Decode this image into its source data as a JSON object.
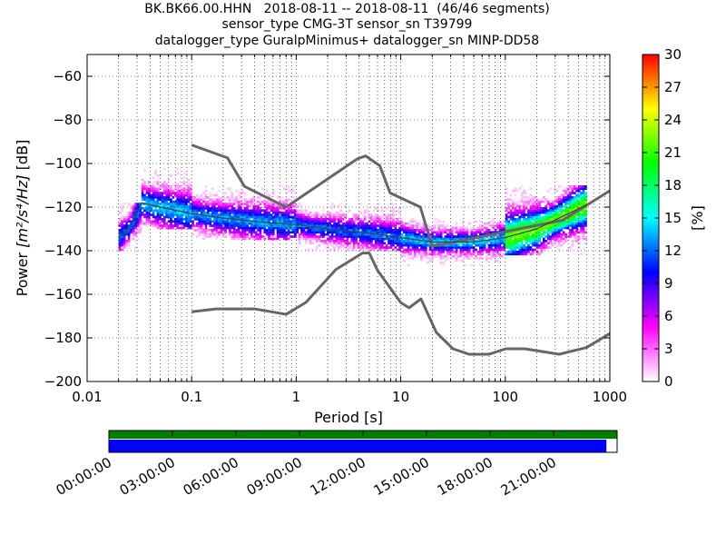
{
  "chart_data": {
    "type": "heatmap",
    "title_lines": [
      "BK.BK66.00.HHN   2018-08-11 -- 2018-08-11  (46/46 segments)",
      "sensor_type CMG-3T sensor_sn T39799",
      "datalogger_type GuralpMinimus+ datalogger_sn MINP-DD58"
    ],
    "xlabel": "Period [s]",
    "ylabel_prefix": "Power ",
    "ylabel_math": "[m²/s⁴/Hz]",
    "ylabel_suffix": " [dB]",
    "x_scale": "log",
    "xlim": [
      0.01,
      1000
    ],
    "ylim": [
      -200,
      -50
    ],
    "x_ticks": [
      0.01,
      0.1,
      1,
      10,
      100,
      1000
    ],
    "x_tick_labels": [
      "0.01",
      "0.1",
      "1",
      "10",
      "100",
      "1000"
    ],
    "y_ticks": [
      -200,
      -180,
      -160,
      -140,
      -120,
      -100,
      -80,
      -60
    ],
    "y_tick_labels": [
      "−200",
      "−180",
      "−160",
      "−140",
      "−120",
      "−100",
      "−80",
      "−60"
    ],
    "grid": true,
    "colorbar": {
      "label": "[%]",
      "range": [
        0,
        30
      ],
      "ticks": [
        0,
        3,
        6,
        9,
        12,
        15,
        18,
        21,
        24,
        27,
        30
      ],
      "colormap": [
        "#ffffff",
        "#ff00ff",
        "#0000ff",
        "#00ffff",
        "#00ff00",
        "#ffff00",
        "#ff0000"
      ]
    },
    "reference_curves": {
      "color": "#666666",
      "high_noise_model": [
        [
          0.1,
          -91.5
        ],
        [
          0.22,
          -97.4
        ],
        [
          0.32,
          -110.5
        ],
        [
          0.8,
          -120
        ],
        [
          3.8,
          -98
        ],
        [
          4.6,
          -96.5
        ],
        [
          6.3,
          -101
        ],
        [
          7.9,
          -113.5
        ],
        [
          15.4,
          -120
        ],
        [
          20,
          -138
        ],
        [
          354.8,
          -126
        ],
        [
          1000,
          -112.5
        ]
      ],
      "low_noise_model": [
        [
          0.1,
          -168
        ],
        [
          0.17,
          -166.7
        ],
        [
          0.4,
          -166.7
        ],
        [
          0.8,
          -169.2
        ],
        [
          1.24,
          -163.7
        ],
        [
          2.4,
          -148.6
        ],
        [
          4.3,
          -141.1
        ],
        [
          5,
          -141.1
        ],
        [
          6,
          -149
        ],
        [
          10,
          -163.8
        ],
        [
          12,
          -166.2
        ],
        [
          15.6,
          -162.1
        ],
        [
          21.9,
          -177.5
        ],
        [
          31.6,
          -185
        ],
        [
          45,
          -187.5
        ],
        [
          70,
          -187.5
        ],
        [
          101,
          -185
        ],
        [
          154,
          -185
        ],
        [
          328,
          -187.5
        ],
        [
          600,
          -184.4
        ],
        [
          1000,
          -178
        ]
      ]
    },
    "mean_psd_curve": {
      "color": "#404040",
      "points": [
        [
          0.02,
          -134
        ],
        [
          0.025,
          -130
        ],
        [
          0.03,
          -123
        ],
        [
          0.033,
          -118
        ],
        [
          0.05,
          -120
        ],
        [
          0.1,
          -123
        ],
        [
          0.2,
          -125
        ],
        [
          0.5,
          -127
        ],
        [
          1,
          -128
        ],
        [
          2,
          -130
        ],
        [
          5,
          -132
        ],
        [
          10,
          -134
        ],
        [
          20,
          -136
        ],
        [
          50,
          -136
        ],
        [
          100,
          -134
        ],
        [
          200,
          -130
        ],
        [
          400,
          -123
        ],
        [
          600,
          -119
        ]
      ]
    },
    "psd_density_bands": [
      {
        "period_range": [
          0.02,
          0.033
        ],
        "db_range": [
          -140,
          -118
        ],
        "peak_percent": 12
      },
      {
        "period_range": [
          0.033,
          0.1
        ],
        "db_range": [
          -130,
          -102
        ],
        "peak_percent": 14
      },
      {
        "period_range": [
          0.1,
          1
        ],
        "db_range": [
          -135,
          -110
        ],
        "peak_percent": 13
      },
      {
        "period_range": [
          1,
          10
        ],
        "db_range": [
          -140,
          -118
        ],
        "peak_percent": 12
      },
      {
        "period_range": [
          10,
          100
        ],
        "db_range": [
          -147,
          -125
        ],
        "peak_percent": 14
      },
      {
        "period_range": [
          100,
          600
        ],
        "db_range": [
          -142,
          -110
        ],
        "peak_percent": 22
      }
    ]
  },
  "data_availability": {
    "time_labels": [
      "00:00:00",
      "03:00:00",
      "06:00:00",
      "09:00:00",
      "12:00:00",
      "15:00:00",
      "18:00:00",
      "21:00:00"
    ],
    "used_color": "#008000",
    "available_color": "#0000ff",
    "available_fraction": 0.979
  }
}
